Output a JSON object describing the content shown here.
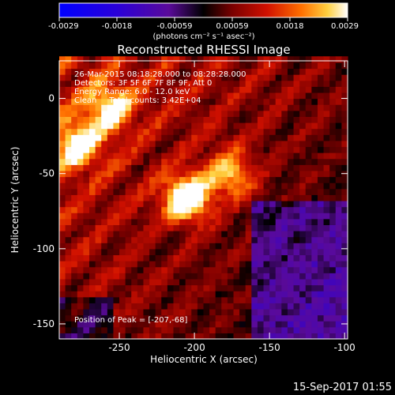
{
  "chart_data": {
    "type": "heatmap",
    "title": "Reconstructed RHESSI Image",
    "xlabel": "Heliocentric X (arcsec)",
    "ylabel": "Heliocentric Y (arcsec)",
    "xlim": [
      -290,
      -98
    ],
    "ylim": [
      -160,
      25
    ],
    "xticks": [
      -250,
      -200,
      -150,
      -100
    ],
    "yticks": [
      0,
      -50,
      -100,
      -150
    ],
    "colorbar": {
      "label": "(photons cm⁻² s⁻¹ asec⁻²)",
      "range": [
        -0.0029,
        0.0029
      ],
      "ticks": [
        "-0.0029",
        "-0.0018",
        "-0.00059",
        "0.00059",
        "0.0018",
        "0.0029"
      ]
    },
    "annotations": {
      "time_range": "26-Mar-2015 08:18:28.000 to 08:28:28.000",
      "detectors": "Detectors: 3F 5F 6F 7F 8F 9F, Att 0",
      "energy": "Energy Range: 6.0 - 12.0 keV",
      "clean_totals": "Clean     Total counts: 3.42E+04",
      "peak": "Position of Peak = [-207,-68]"
    },
    "peak_position": [
      -207,
      -68
    ],
    "sources": [
      {
        "x": -207,
        "y": -68,
        "amplitude": 0.0029
      },
      {
        "x": -178,
        "y": -52,
        "amplitude": 0.0019
      },
      {
        "x": -280,
        "y": -32,
        "amplitude": 0.0022
      },
      {
        "x": -258,
        "y": -8,
        "amplitude": 0.002
      }
    ]
  },
  "footer": {
    "timestamp": "15-Sep-2017 01:55"
  }
}
